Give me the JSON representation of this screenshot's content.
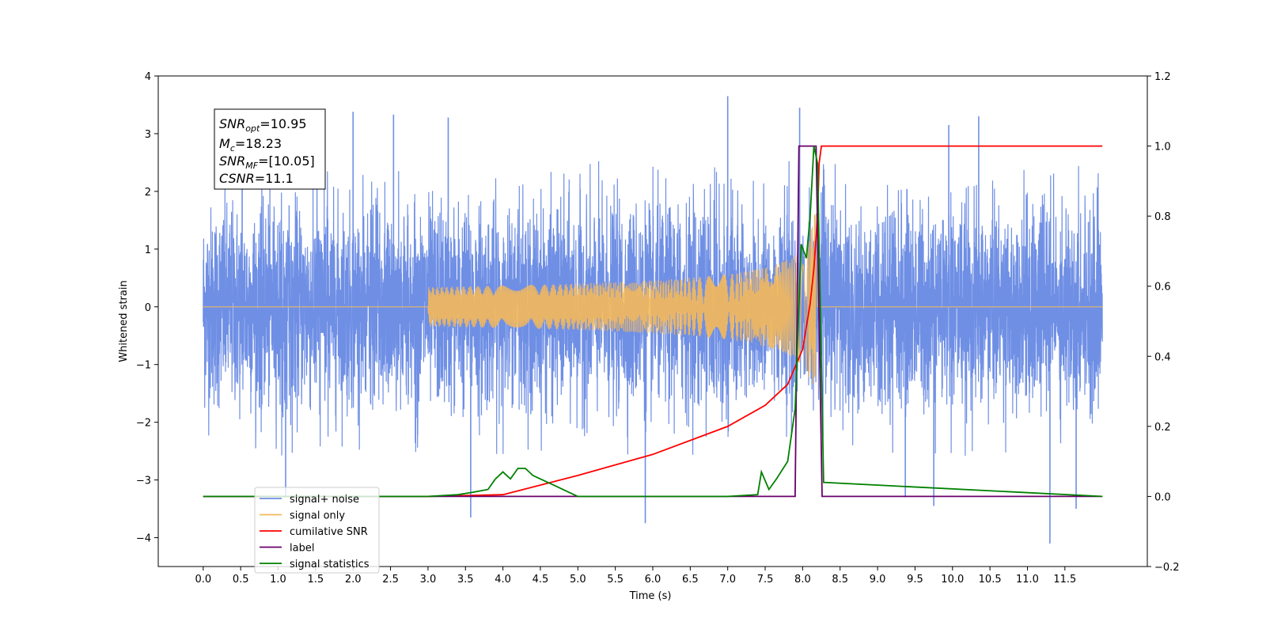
{
  "chart_data": {
    "type": "line",
    "xlabel": "Time (s)",
    "ylabel_left": "Whitened strain",
    "xlim": [
      -0.6,
      12.6
    ],
    "ylim_left": [
      -4.5,
      4.0
    ],
    "ylim_right": [
      -0.2,
      1.2
    ],
    "x_ticks": [
      0.0,
      0.5,
      1.0,
      1.5,
      2.0,
      2.5,
      3.0,
      3.5,
      4.0,
      4.5,
      5.0,
      5.5,
      6.0,
      6.5,
      7.0,
      7.5,
      8.0,
      8.5,
      9.0,
      9.5,
      10.0,
      10.5,
      11.0,
      11.5
    ],
    "x_tick_labels": [
      "0.0",
      "0.5",
      "1.0",
      "1.5",
      "2.0",
      "2.5",
      "3.0",
      "3.5",
      "4.0",
      "4.5",
      "5.0",
      "5.5",
      "6.0",
      "6.5",
      "7.0",
      "7.5",
      "8.0",
      "8.5",
      "9.0",
      "9.5",
      "10.0",
      "10.5",
      "11.0",
      "11.5"
    ],
    "y_left_ticks": [
      -4,
      -3,
      -2,
      -1,
      0,
      1,
      2,
      3,
      4
    ],
    "y_left_tick_labels": [
      "−4",
      "−3",
      "−2",
      "−1",
      "0",
      "1",
      "2",
      "3",
      "4"
    ],
    "y_right_ticks": [
      -0.2,
      0.0,
      0.2,
      0.4,
      0.6,
      0.8,
      1.0,
      1.2
    ],
    "y_right_tick_labels": [
      "−0.2",
      "0.0",
      "0.2",
      "0.4",
      "0.6",
      "0.8",
      "1.0",
      "1.2"
    ],
    "grid": false,
    "legend_position": "lower-left",
    "legend": [
      {
        "label": "signal+ noise",
        "color": "#6f8fe5"
      },
      {
        "label": "signal only",
        "color": "#f5b95a"
      },
      {
        "label": "cumilative SNR",
        "color": "#ff0000"
      },
      {
        "label": "label",
        "color": "#6a006a"
      },
      {
        "label": "signal statistics",
        "color": "#008000"
      }
    ],
    "annotation": {
      "snr_opt_value": "=10.95",
      "mc_value": "=18.23",
      "snr_mf_value": "=[10.05]",
      "csnr_value": "=11.1"
    },
    "series": [
      {
        "name": "signal+ noise",
        "axis": "left",
        "color": "#6f8fe5",
        "description_range": "noise between about -2.5 and 2.5 with spikes",
        "x_range": [
          0.0,
          12.0
        ],
        "spikes": [
          {
            "x": 7.0,
            "y": 3.65
          },
          {
            "x": 7.96,
            "y": 3.45
          },
          {
            "x": 2.0,
            "y": 3.38
          },
          {
            "x": 2.54,
            "y": 3.33
          },
          {
            "x": 3.27,
            "y": 3.28
          },
          {
            "x": 10.35,
            "y": 3.3
          },
          {
            "x": 9.95,
            "y": 3.15
          },
          {
            "x": 0.52,
            "y": 3.25
          },
          {
            "x": 11.3,
            "y": -4.1
          },
          {
            "x": 5.9,
            "y": -3.75
          },
          {
            "x": 3.57,
            "y": -3.65
          },
          {
            "x": 9.75,
            "y": -3.45
          },
          {
            "x": 11.65,
            "y": -3.5
          },
          {
            "x": 9.37,
            "y": -3.3
          },
          {
            "x": 1.1,
            "y": -3.3
          }
        ]
      },
      {
        "name": "signal only",
        "axis": "left",
        "color": "#f5b95a",
        "chirp_start": 3.0,
        "merger": 8.2,
        "peak_amplitude": 1.6
      },
      {
        "name": "cumilative SNR",
        "axis": "right",
        "color": "#ff0000",
        "x": [
          0.0,
          3.0,
          4.0,
          5.0,
          6.0,
          7.0,
          7.5,
          7.8,
          8.0,
          8.1,
          8.15,
          8.2,
          8.22,
          8.25,
          12.0
        ],
        "y": [
          0.0,
          0.0,
          0.005,
          0.06,
          0.12,
          0.2,
          0.26,
          0.32,
          0.42,
          0.55,
          0.65,
          0.8,
          0.95,
          1.0,
          1.0
        ]
      },
      {
        "name": "label",
        "axis": "right",
        "color": "#6a006a",
        "x": [
          0.0,
          7.9,
          7.95,
          8.18,
          8.26,
          12.0
        ],
        "y": [
          0.0,
          0.0,
          1.0,
          1.0,
          0.0,
          0.0
        ]
      },
      {
        "name": "signal statistics",
        "axis": "right",
        "color": "#008000",
        "x": [
          0.0,
          3.0,
          3.4,
          3.6,
          3.8,
          3.9,
          4.0,
          4.1,
          4.2,
          4.3,
          4.4,
          4.5,
          4.7,
          4.85,
          5.0,
          6.0,
          7.0,
          7.4,
          7.45,
          7.55,
          7.65,
          7.8,
          7.9,
          7.98,
          8.05,
          8.1,
          8.15,
          8.2,
          8.23,
          8.28,
          12.0
        ],
        "y": [
          0.0,
          0.0,
          0.005,
          0.012,
          0.02,
          0.05,
          0.07,
          0.05,
          0.08,
          0.08,
          0.06,
          0.05,
          0.03,
          0.015,
          0.0,
          0.0,
          0.0,
          0.005,
          0.07,
          0.02,
          0.05,
          0.1,
          0.25,
          0.72,
          0.68,
          0.8,
          1.0,
          0.95,
          0.6,
          0.04,
          0.0
        ]
      }
    ]
  }
}
